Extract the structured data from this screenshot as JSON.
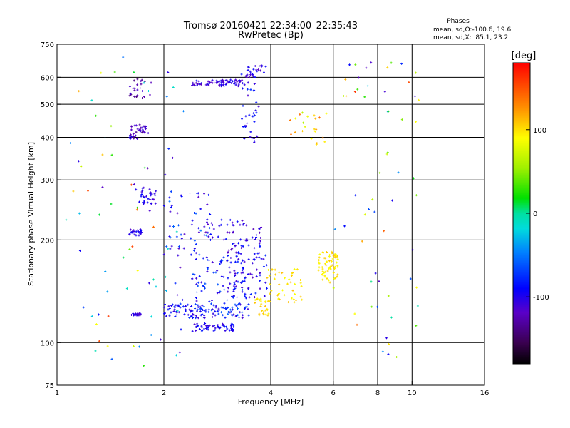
{
  "chart_data": {
    "type": "scatter",
    "title": "Tromsø 20160421 22:34:00–22:35:43",
    "subtitle": "RwPretec (Bp)",
    "xlabel": "Frequency [MHz]",
    "ylabel": "Stationary phase Virtual Height [km]",
    "x_scale": "log2",
    "y_scale": "log",
    "xlim": [
      1,
      16
    ],
    "ylim": [
      75,
      750
    ],
    "x_ticks": [
      1,
      2,
      4,
      6,
      8,
      10,
      16
    ],
    "y_ticks": [
      75,
      100,
      200,
      300,
      400,
      500,
      600,
      750
    ],
    "x_tick_labels": [
      "1",
      "2",
      "4",
      "6",
      "8",
      "10",
      "16"
    ],
    "y_tick_labels": [
      "75",
      "100",
      "200",
      "300",
      "400",
      "500",
      "600",
      "750"
    ],
    "x_gridlines": [
      2,
      4,
      6,
      8,
      10
    ],
    "y_gridlines": [
      100,
      200,
      300,
      400,
      500,
      600
    ],
    "grid": true,
    "phases_box": {
      "title": "Phases",
      "line1": "mean, sd,O:-100.6, 19.6",
      "line2": "mean, sd,X:  85.1, 23.2"
    },
    "colorbar": {
      "label": "[deg]",
      "range": [
        -180,
        180
      ],
      "ticks": [
        100,
        0,
        -100
      ],
      "tick_labels": [
        "100",
        "0",
        "-100"
      ]
    },
    "clusters": [
      {
        "f": [
          1.62,
          1.72
        ],
        "h": [
          120,
          122
        ],
        "n": 30,
        "ph": [
          -120,
          -95
        ]
      },
      {
        "f": [
          1.6,
          1.75
        ],
        "h": [
          205,
          215
        ],
        "n": 22,
        "ph": [
          -120,
          -90
        ]
      },
      {
        "f": [
          1.68,
          1.9
        ],
        "h": [
          255,
          285
        ],
        "n": 30,
        "ph": [
          -120,
          -90
        ]
      },
      {
        "f": [
          1.6,
          1.78
        ],
        "h": [
          395,
          440
        ],
        "n": 40,
        "ph": [
          -140,
          -100
        ]
      },
      {
        "f": [
          1.6,
          1.78
        ],
        "h": [
          520,
          600
        ],
        "n": 22,
        "ph": [
          -145,
          -110
        ]
      },
      {
        "f": [
          2.0,
          2.5
        ],
        "h": [
          118,
          130
        ],
        "n": 55,
        "ph": [
          -115,
          -70
        ]
      },
      {
        "f": [
          2.4,
          3.2
        ],
        "h": [
          108,
          114
        ],
        "n": 55,
        "ph": [
          -115,
          -80
        ]
      },
      {
        "f": [
          2.5,
          3.5
        ],
        "h": [
          118,
          130
        ],
        "n": 70,
        "ph": [
          -115,
          -55
        ]
      },
      {
        "f": [
          2.4,
          3.4
        ],
        "h": [
          130,
          180
        ],
        "n": 75,
        "ph": [
          -115,
          -60
        ]
      },
      {
        "f": [
          3.0,
          3.9
        ],
        "h": [
          135,
          200
        ],
        "n": 90,
        "ph": [
          -125,
          -75
        ]
      },
      {
        "f": [
          2.0,
          2.7
        ],
        "h": [
          180,
          280
        ],
        "n": 55,
        "ph": [
          -120,
          -50
        ]
      },
      {
        "f": [
          2.6,
          3.8
        ],
        "h": [
          200,
          230
        ],
        "n": 45,
        "ph": [
          -125,
          -85
        ]
      },
      {
        "f": [
          2.4,
          3.4
        ],
        "h": [
          565,
          590
        ],
        "n": 75,
        "ph": [
          -125,
          -90
        ]
      },
      {
        "f": [
          3.3,
          3.7
        ],
        "h": [
          380,
          620
        ],
        "n": 40,
        "ph": [
          -115,
          -75
        ]
      },
      {
        "f": [
          3.4,
          3.9
        ],
        "h": [
          600,
          650
        ],
        "n": 25,
        "ph": [
          -125,
          -90
        ]
      },
      {
        "f": [
          3.6,
          3.95
        ],
        "h": [
          120,
          135
        ],
        "n": 25,
        "ph": [
          90,
          115
        ]
      },
      {
        "f": [
          3.9,
          4.9
        ],
        "h": [
          130,
          165
        ],
        "n": 45,
        "ph": [
          85,
          112
        ]
      },
      {
        "f": [
          5.4,
          6.2
        ],
        "h": [
          150,
          185
        ],
        "n": 70,
        "ph": [
          85,
          112
        ]
      },
      {
        "f": [
          4.5,
          5.8
        ],
        "h": [
          380,
          480
        ],
        "n": 22,
        "ph": [
          60,
          140
        ]
      },
      {
        "f": [
          6.0,
          10.5
        ],
        "h": [
          90,
          700
        ],
        "n": 60,
        "ph": [
          -120,
          160
        ]
      },
      {
        "f": [
          1.05,
          1.9
        ],
        "h": [
          80,
          700
        ],
        "n": 50,
        "ph": [
          -120,
          160
        ]
      },
      {
        "f": [
          1.8,
          2.3
        ],
        "h": [
          85,
          650
        ],
        "n": 35,
        "ph": [
          -130,
          0
        ]
      }
    ]
  }
}
